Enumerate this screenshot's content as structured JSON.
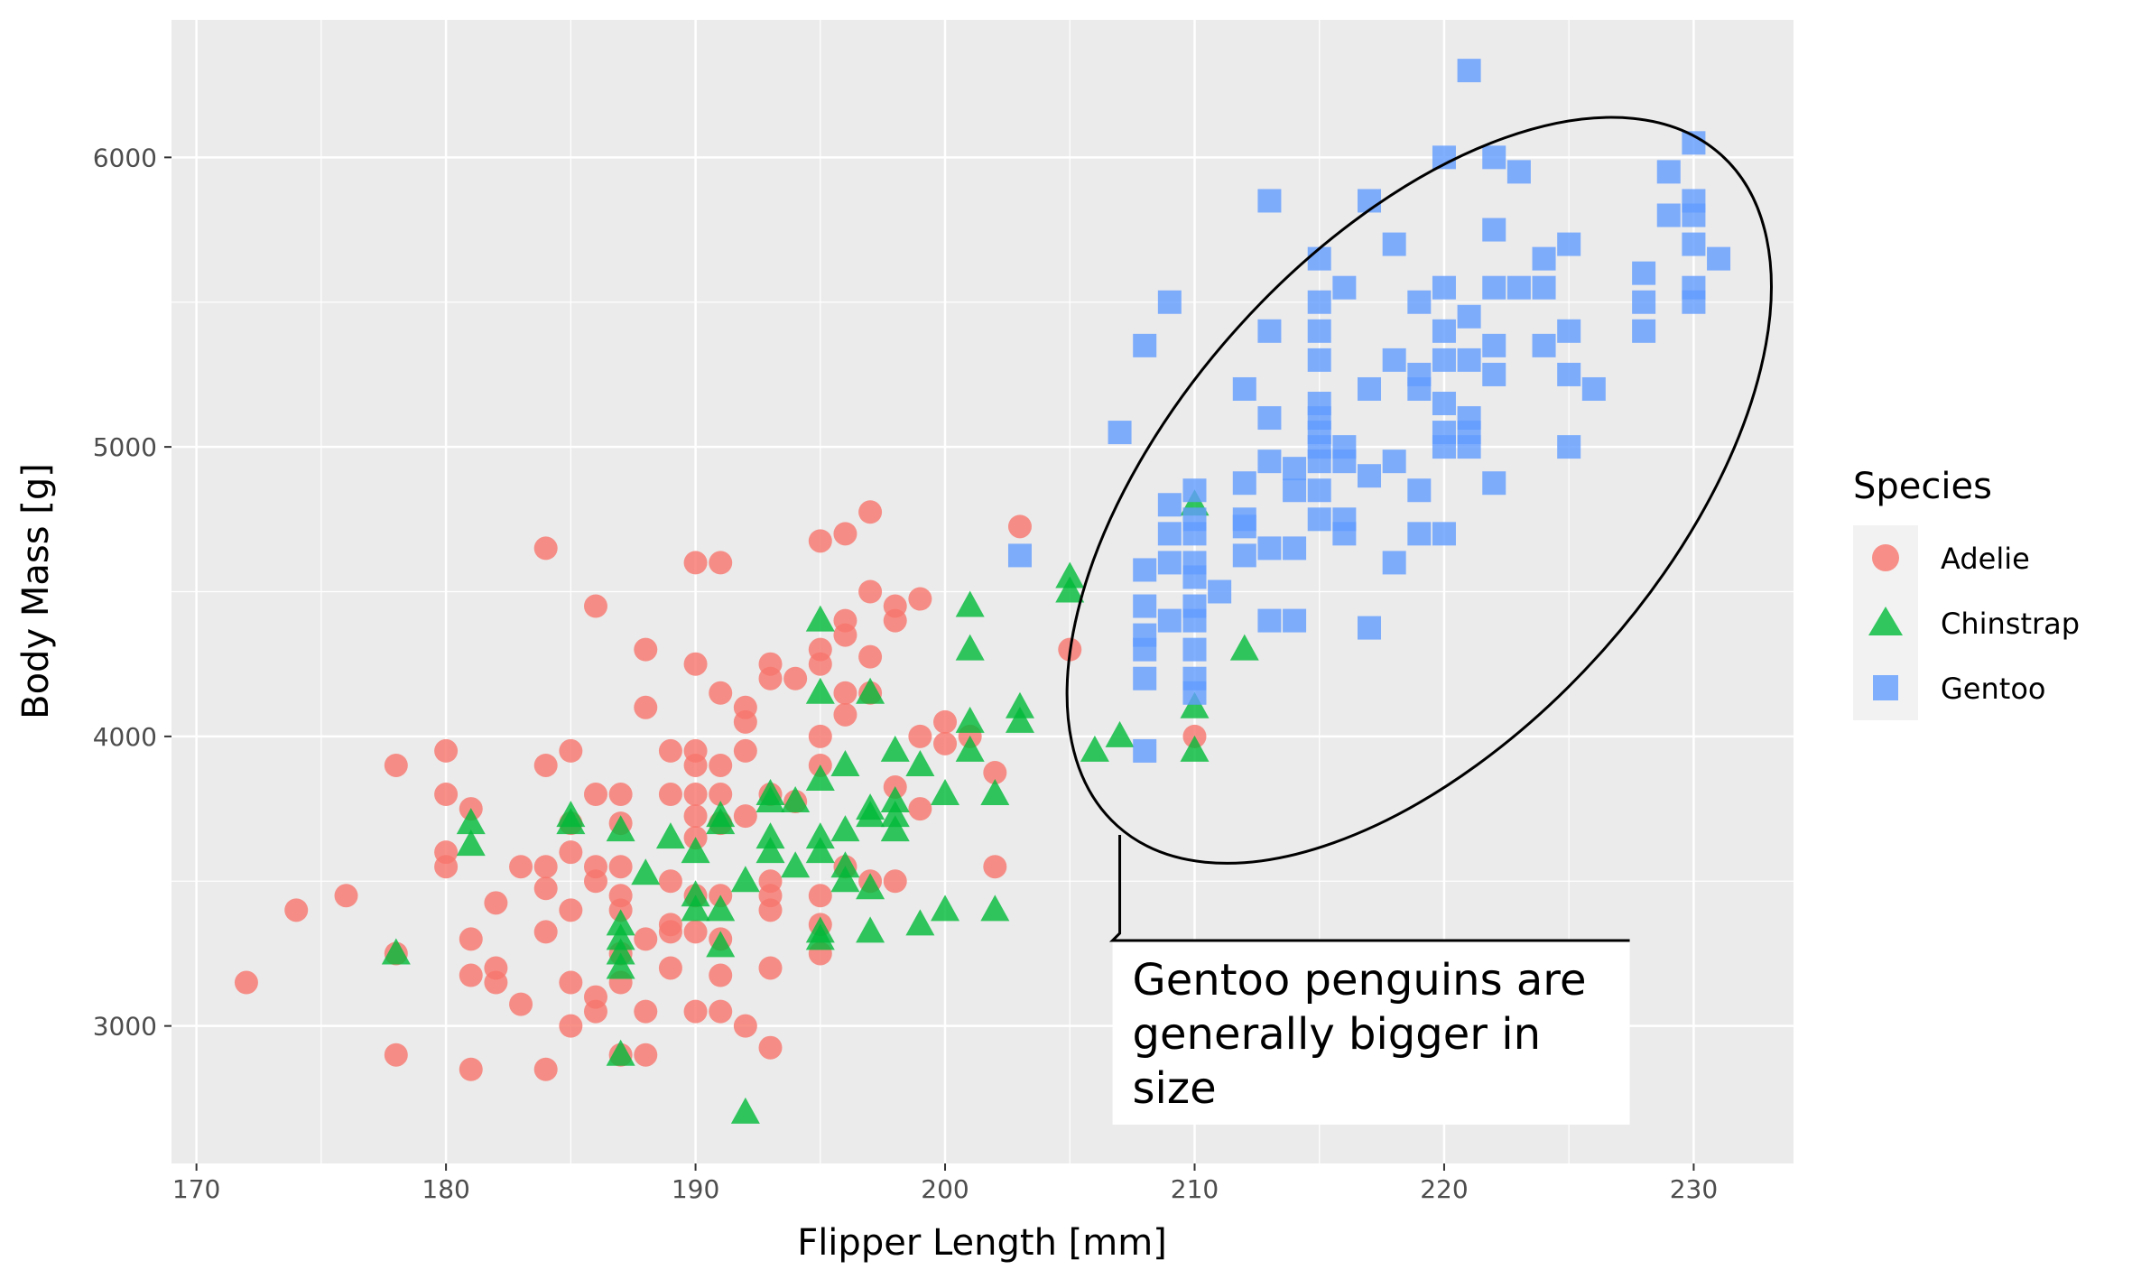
{
  "chart_data": {
    "type": "scatter",
    "xlabel": "Flipper Length [mm]",
    "ylabel": "Body Mass [g]",
    "xlim": [
      169,
      234
    ],
    "ylim": [
      2525,
      6475
    ],
    "x_ticks": [
      170,
      180,
      190,
      200,
      210,
      220,
      230
    ],
    "x_tick_labels": [
      "170",
      "180",
      "190",
      "200",
      "210",
      "220",
      "230"
    ],
    "y_ticks": [
      3000,
      4000,
      5000,
      6000
    ],
    "y_tick_labels": [
      "3000",
      "4000",
      "5000",
      "6000"
    ],
    "grid": true,
    "legend": {
      "title": "Species",
      "position": "right"
    },
    "colors": {
      "panel": "#ebebeb",
      "grid": "#ffffff"
    },
    "series": [
      {
        "name": "Adelie",
        "marker": "circle",
        "color": "#f8766d",
        "points": [
          [
            172,
            3150
          ],
          [
            174,
            3400
          ],
          [
            176,
            3450
          ],
          [
            178,
            3900
          ],
          [
            178,
            3250
          ],
          [
            178,
            2900
          ],
          [
            180,
            3950
          ],
          [
            180,
            3800
          ],
          [
            180,
            3600
          ],
          [
            180,
            3550
          ],
          [
            181,
            3750
          ],
          [
            181,
            3300
          ],
          [
            181,
            3175
          ],
          [
            181,
            2850
          ],
          [
            182,
            3425
          ],
          [
            182,
            3200
          ],
          [
            182,
            3150
          ],
          [
            183,
            3550
          ],
          [
            183,
            3075
          ],
          [
            184,
            4650
          ],
          [
            184,
            3900
          ],
          [
            184,
            3550
          ],
          [
            184,
            3475
          ],
          [
            184,
            3325
          ],
          [
            184,
            2850
          ],
          [
            185,
            3950
          ],
          [
            185,
            3700
          ],
          [
            185,
            3600
          ],
          [
            185,
            3400
          ],
          [
            185,
            3150
          ],
          [
            185,
            3000
          ],
          [
            186,
            4450
          ],
          [
            186,
            3800
          ],
          [
            186,
            3550
          ],
          [
            186,
            3500
          ],
          [
            186,
            3100
          ],
          [
            186,
            3050
          ],
          [
            187,
            3800
          ],
          [
            187,
            3700
          ],
          [
            187,
            3550
          ],
          [
            187,
            3450
          ],
          [
            187,
            3400
          ],
          [
            187,
            3250
          ],
          [
            187,
            3150
          ],
          [
            187,
            2900
          ],
          [
            188,
            4300
          ],
          [
            188,
            4100
          ],
          [
            188,
            3300
          ],
          [
            188,
            3050
          ],
          [
            188,
            2900
          ],
          [
            189,
            3950
          ],
          [
            189,
            3800
          ],
          [
            189,
            3500
          ],
          [
            189,
            3350
          ],
          [
            189,
            3325
          ],
          [
            189,
            3200
          ],
          [
            190,
            4600
          ],
          [
            190,
            4250
          ],
          [
            190,
            3950
          ],
          [
            190,
            3900
          ],
          [
            190,
            3800
          ],
          [
            190,
            3725
          ],
          [
            190,
            3650
          ],
          [
            190,
            3450
          ],
          [
            190,
            3325
          ],
          [
            190,
            3050
          ],
          [
            191,
            4600
          ],
          [
            191,
            4150
          ],
          [
            191,
            3900
          ],
          [
            191,
            3800
          ],
          [
            191,
            3700
          ],
          [
            191,
            3450
          ],
          [
            191,
            3300
          ],
          [
            191,
            3175
          ],
          [
            191,
            3050
          ],
          [
            192,
            4100
          ],
          [
            192,
            4050
          ],
          [
            192,
            3950
          ],
          [
            192,
            3725
          ],
          [
            192,
            3000
          ],
          [
            193,
            4250
          ],
          [
            193,
            4200
          ],
          [
            193,
            3800
          ],
          [
            193,
            3500
          ],
          [
            193,
            3450
          ],
          [
            193,
            3400
          ],
          [
            193,
            3200
          ],
          [
            193,
            2925
          ],
          [
            194,
            4200
          ],
          [
            194,
            3775
          ],
          [
            195,
            4675
          ],
          [
            195,
            4300
          ],
          [
            195,
            4250
          ],
          [
            195,
            4000
          ],
          [
            195,
            3900
          ],
          [
            195,
            3450
          ],
          [
            195,
            3350
          ],
          [
            195,
            3250
          ],
          [
            196,
            4700
          ],
          [
            196,
            4400
          ],
          [
            196,
            4350
          ],
          [
            196,
            4150
          ],
          [
            196,
            4075
          ],
          [
            196,
            3550
          ],
          [
            197,
            4775
          ],
          [
            197,
            4500
          ],
          [
            197,
            4275
          ],
          [
            197,
            4150
          ],
          [
            197,
            3500
          ],
          [
            198,
            4450
          ],
          [
            198,
            4400
          ],
          [
            198,
            3825
          ],
          [
            198,
            3500
          ],
          [
            199,
            4475
          ],
          [
            199,
            4000
          ],
          [
            199,
            3750
          ],
          [
            200,
            4050
          ],
          [
            200,
            3975
          ],
          [
            201,
            4000
          ],
          [
            202,
            3875
          ],
          [
            202,
            3550
          ],
          [
            203,
            4725
          ],
          [
            205,
            4300
          ],
          [
            210,
            4000
          ]
        ]
      },
      {
        "name": "Chinstrap",
        "marker": "triangle",
        "color": "#00ba38",
        "points": [
          [
            178,
            3250
          ],
          [
            181,
            3700
          ],
          [
            181,
            3625
          ],
          [
            185,
            3725
          ],
          [
            185,
            3700
          ],
          [
            187,
            3675
          ],
          [
            187,
            3350
          ],
          [
            187,
            3300
          ],
          [
            187,
            3250
          ],
          [
            187,
            3200
          ],
          [
            187,
            2900
          ],
          [
            188,
            3525
          ],
          [
            189,
            3650
          ],
          [
            190,
            3600
          ],
          [
            190,
            3450
          ],
          [
            190,
            3400
          ],
          [
            191,
            3725
          ],
          [
            191,
            3700
          ],
          [
            191,
            3400
          ],
          [
            191,
            3275
          ],
          [
            192,
            3500
          ],
          [
            192,
            2700
          ],
          [
            193,
            3800
          ],
          [
            193,
            3775
          ],
          [
            193,
            3650
          ],
          [
            193,
            3600
          ],
          [
            194,
            3775
          ],
          [
            194,
            3550
          ],
          [
            195,
            4400
          ],
          [
            195,
            4150
          ],
          [
            195,
            3850
          ],
          [
            195,
            3650
          ],
          [
            195,
            3600
          ],
          [
            195,
            3325
          ],
          [
            195,
            3300
          ],
          [
            196,
            3900
          ],
          [
            196,
            3675
          ],
          [
            196,
            3550
          ],
          [
            196,
            3500
          ],
          [
            197,
            4150
          ],
          [
            197,
            3750
          ],
          [
            197,
            3725
          ],
          [
            197,
            3475
          ],
          [
            197,
            3325
          ],
          [
            198,
            3950
          ],
          [
            198,
            3775
          ],
          [
            198,
            3725
          ],
          [
            198,
            3675
          ],
          [
            199,
            3900
          ],
          [
            199,
            3350
          ],
          [
            200,
            3800
          ],
          [
            200,
            3400
          ],
          [
            201,
            4450
          ],
          [
            201,
            4300
          ],
          [
            201,
            4050
          ],
          [
            201,
            3950
          ],
          [
            202,
            3800
          ],
          [
            202,
            3400
          ],
          [
            203,
            4100
          ],
          [
            203,
            4050
          ],
          [
            205,
            4550
          ],
          [
            205,
            4500
          ],
          [
            206,
            3950
          ],
          [
            207,
            4000
          ],
          [
            210,
            4800
          ],
          [
            210,
            4100
          ],
          [
            210,
            3950
          ],
          [
            212,
            4300
          ]
        ]
      },
      {
        "name": "Gentoo",
        "marker": "square",
        "color": "#619cff",
        "points": [
          [
            203,
            4625
          ],
          [
            207,
            5050
          ],
          [
            208,
            5350
          ],
          [
            208,
            4575
          ],
          [
            208,
            4450
          ],
          [
            208,
            4350
          ],
          [
            208,
            4300
          ],
          [
            208,
            4200
          ],
          [
            208,
            3950
          ],
          [
            209,
            5500
          ],
          [
            209,
            4800
          ],
          [
            209,
            4700
          ],
          [
            209,
            4600
          ],
          [
            209,
            4400
          ],
          [
            210,
            4850
          ],
          [
            210,
            4750
          ],
          [
            210,
            4700
          ],
          [
            210,
            4600
          ],
          [
            210,
            4550
          ],
          [
            210,
            4450
          ],
          [
            210,
            4400
          ],
          [
            210,
            4300
          ],
          [
            210,
            4200
          ],
          [
            210,
            4150
          ],
          [
            211,
            4500
          ],
          [
            212,
            5200
          ],
          [
            212,
            4875
          ],
          [
            212,
            4750
          ],
          [
            212,
            4725
          ],
          [
            212,
            4625
          ],
          [
            213,
            5850
          ],
          [
            213,
            5400
          ],
          [
            213,
            5100
          ],
          [
            213,
            4950
          ],
          [
            213,
            4650
          ],
          [
            213,
            4400
          ],
          [
            214,
            4925
          ],
          [
            214,
            4850
          ],
          [
            214,
            4650
          ],
          [
            214,
            4400
          ],
          [
            215,
            5650
          ],
          [
            215,
            5500
          ],
          [
            215,
            5400
          ],
          [
            215,
            5300
          ],
          [
            215,
            5150
          ],
          [
            215,
            5100
          ],
          [
            215,
            5050
          ],
          [
            215,
            5000
          ],
          [
            215,
            4950
          ],
          [
            215,
            4850
          ],
          [
            215,
            4750
          ],
          [
            216,
            5550
          ],
          [
            216,
            5000
          ],
          [
            216,
            4950
          ],
          [
            216,
            4750
          ],
          [
            216,
            4700
          ],
          [
            217,
            5850
          ],
          [
            217,
            5200
          ],
          [
            217,
            4900
          ],
          [
            217,
            4375
          ],
          [
            218,
            5700
          ],
          [
            218,
            5300
          ],
          [
            218,
            4950
          ],
          [
            218,
            4600
          ],
          [
            219,
            5500
          ],
          [
            219,
            5250
          ],
          [
            219,
            5200
          ],
          [
            219,
            4850
          ],
          [
            219,
            4700
          ],
          [
            220,
            6000
          ],
          [
            220,
            5550
          ],
          [
            220,
            5400
          ],
          [
            220,
            5300
          ],
          [
            220,
            5150
          ],
          [
            220,
            5050
          ],
          [
            220,
            5000
          ],
          [
            220,
            4700
          ],
          [
            221,
            6300
          ],
          [
            221,
            5450
          ],
          [
            221,
            5300
          ],
          [
            221,
            5100
          ],
          [
            221,
            5050
          ],
          [
            221,
            5000
          ],
          [
            222,
            6000
          ],
          [
            222,
            5750
          ],
          [
            222,
            5550
          ],
          [
            222,
            5350
          ],
          [
            222,
            5250
          ],
          [
            222,
            4875
          ],
          [
            223,
            5950
          ],
          [
            223,
            5550
          ],
          [
            224,
            5650
          ],
          [
            224,
            5550
          ],
          [
            224,
            5350
          ],
          [
            225,
            5700
          ],
          [
            225,
            5400
          ],
          [
            225,
            5250
          ],
          [
            225,
            5000
          ],
          [
            226,
            5200
          ],
          [
            228,
            5600
          ],
          [
            228,
            5500
          ],
          [
            228,
            5400
          ],
          [
            229,
            5950
          ],
          [
            229,
            5800
          ],
          [
            230,
            6050
          ],
          [
            230,
            5850
          ],
          [
            230,
            5800
          ],
          [
            230,
            5700
          ],
          [
            230,
            5550
          ],
          [
            230,
            5500
          ],
          [
            231,
            5650
          ]
        ]
      }
    ],
    "annotation": {
      "text": "Gentoo penguins are generally bigger in size",
      "lines": [
        "Gentoo penguins are",
        "generally bigger in",
        "size"
      ],
      "ellipse_center": [
        219,
        4850
      ],
      "pointer_x": 207,
      "pointer_y_range": [
        3660,
        3320
      ],
      "box_corner": [
        207,
        3320
      ]
    }
  }
}
